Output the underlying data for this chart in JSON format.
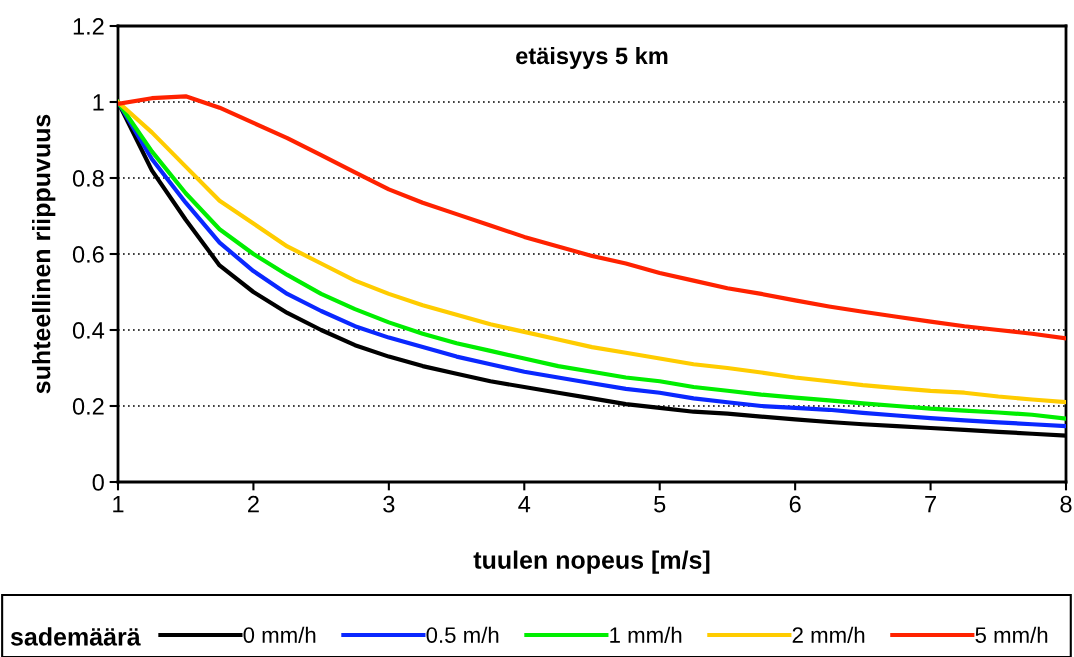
{
  "chart_data": {
    "type": "line",
    "title": "etäisyys 5 km",
    "xlabel": "tuulen nopeus [m/s]",
    "ylabel": "suhteellinen riippuvuus",
    "legend_title": "sademäärä",
    "legend": "bottom",
    "grid": "y",
    "line_style": "solid",
    "marker": "none",
    "x": [
      1,
      1.25,
      1.5,
      1.75,
      2,
      2.25,
      2.5,
      2.75,
      3,
      3.25,
      3.5,
      3.75,
      4,
      4.25,
      4.5,
      4.75,
      5,
      5.25,
      5.5,
      5.75,
      6,
      6.25,
      6.5,
      6.75,
      7,
      7.25,
      7.5,
      7.75,
      8
    ],
    "xlim": [
      1,
      8
    ],
    "xticks": [
      1,
      2,
      3,
      4,
      5,
      6,
      7,
      8
    ],
    "ylim": [
      0,
      1.2
    ],
    "yticks": [
      0,
      0.2,
      0.4,
      0.6,
      0.8,
      1,
      1.2
    ],
    "series": [
      {
        "name": "0 mm/h",
        "color": "#000000",
        "values": [
          1.0,
          0.82,
          0.69,
          0.57,
          0.5,
          0.445,
          0.4,
          0.36,
          0.33,
          0.305,
          0.285,
          0.265,
          0.25,
          0.235,
          0.22,
          0.205,
          0.195,
          0.185,
          0.18,
          0.172,
          0.165,
          0.158,
          0.152,
          0.147,
          0.142,
          0.137,
          0.132,
          0.127,
          0.122
        ]
      },
      {
        "name": "0.5 m/h",
        "color": "#0a28ff",
        "values": [
          1.0,
          0.85,
          0.735,
          0.63,
          0.555,
          0.495,
          0.45,
          0.41,
          0.38,
          0.355,
          0.33,
          0.31,
          0.29,
          0.275,
          0.26,
          0.245,
          0.235,
          0.22,
          0.21,
          0.2,
          0.195,
          0.19,
          0.182,
          0.175,
          0.168,
          0.162,
          0.157,
          0.152,
          0.147
        ]
      },
      {
        "name": "1 mm/h",
        "color": "#00ee00",
        "values": [
          1.0,
          0.87,
          0.76,
          0.665,
          0.6,
          0.545,
          0.495,
          0.455,
          0.42,
          0.39,
          0.365,
          0.345,
          0.325,
          0.305,
          0.29,
          0.275,
          0.265,
          0.25,
          0.24,
          0.23,
          0.222,
          0.215,
          0.207,
          0.2,
          0.193,
          0.188,
          0.183,
          0.177,
          0.167
        ]
      },
      {
        "name": "2 mm/h",
        "color": "#ffcc00",
        "values": [
          1.0,
          0.92,
          0.83,
          0.74,
          0.68,
          0.62,
          0.575,
          0.53,
          0.495,
          0.465,
          0.44,
          0.415,
          0.395,
          0.375,
          0.355,
          0.34,
          0.325,
          0.31,
          0.3,
          0.288,
          0.275,
          0.265,
          0.255,
          0.247,
          0.24,
          0.235,
          0.225,
          0.217,
          0.21
        ]
      },
      {
        "name": "5 mm/h",
        "color": "#ff2200",
        "values": [
          0.995,
          1.01,
          1.015,
          0.985,
          0.945,
          0.905,
          0.86,
          0.815,
          0.77,
          0.735,
          0.705,
          0.675,
          0.645,
          0.62,
          0.595,
          0.575,
          0.55,
          0.53,
          0.51,
          0.495,
          0.478,
          0.462,
          0.448,
          0.435,
          0.422,
          0.41,
          0.4,
          0.39,
          0.378
        ]
      }
    ]
  }
}
